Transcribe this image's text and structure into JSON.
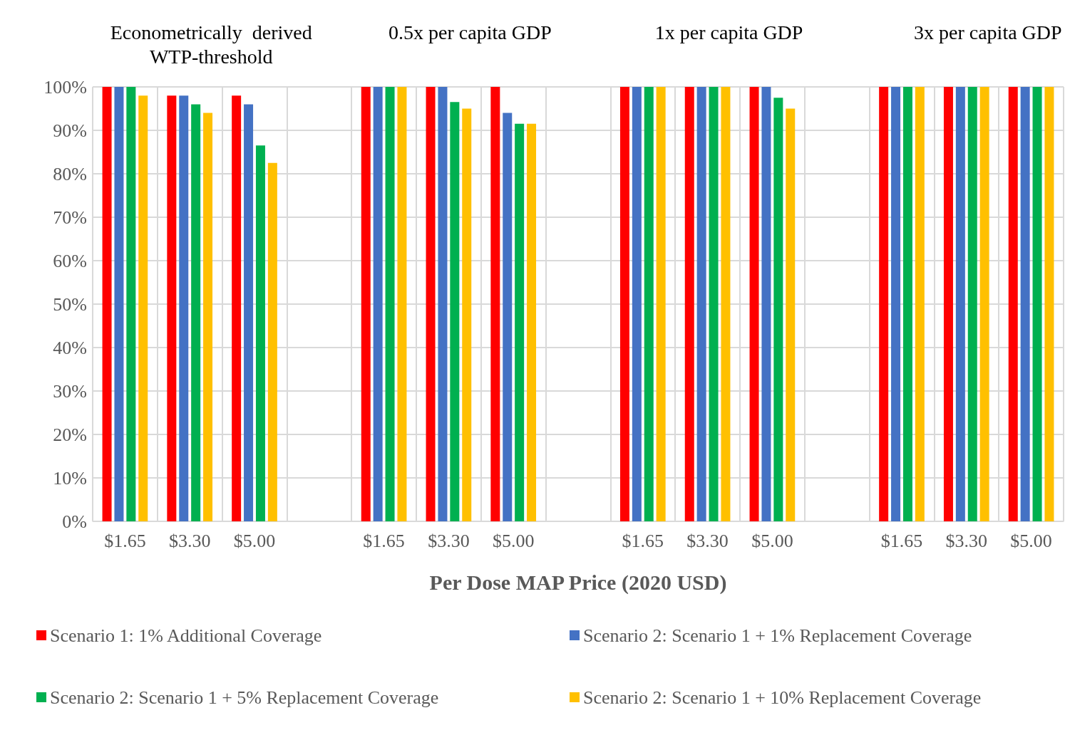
{
  "chart_data": {
    "type": "bar",
    "xlabel": "Per Dose MAP Price (2020 USD)",
    "annotations": [
      "Econometrically  derived\nWTP-threshold",
      "0.5x per capita GDP",
      "1x per capita GDP",
      "3x per capita GDP"
    ],
    "categories": [
      "$1.65",
      "$3.30",
      "$5.00",
      null,
      "$1.65",
      "$3.30",
      "$5.00",
      null,
      "$1.65",
      "$3.30",
      "$5.00",
      null,
      "$1.65",
      "$3.30",
      "$5.00"
    ],
    "series": [
      {
        "name": "Scenario 1: 1% Additional Coverage",
        "color": "#ff0000",
        "values": [
          100,
          98,
          98,
          null,
          100,
          100,
          100,
          null,
          100,
          100,
          100,
          null,
          100,
          100,
          100
        ]
      },
      {
        "name": "Scenario 2: Scenario 1 + 1% Replacement Coverage",
        "color": "#4472c4",
        "values": [
          100,
          98,
          96,
          null,
          100,
          100,
          94,
          null,
          100,
          100,
          100,
          null,
          100,
          100,
          100
        ]
      },
      {
        "name": "Scenario 2: Scenario 1 + 5% Replacement Coverage",
        "color": "#00b050",
        "values": [
          100,
          96,
          86.5,
          null,
          100,
          96.5,
          91.5,
          null,
          100,
          100,
          97.5,
          null,
          100,
          100,
          100
        ]
      },
      {
        "name": "Scenario 2: Scenario 1 + 10% Replacement Coverage",
        "color": "#ffc000",
        "values": [
          98,
          94,
          82.5,
          null,
          100,
          95,
          91.5,
          null,
          100,
          100,
          95,
          null,
          100,
          100,
          100
        ]
      }
    ],
    "ylim": [
      0,
      100
    ],
    "yticks": [
      {
        "value": 0,
        "label": "0%"
      },
      {
        "value": 10,
        "label": "10%"
      },
      {
        "value": 20,
        "label": "20%"
      },
      {
        "value": 30,
        "label": "30%"
      },
      {
        "value": 40,
        "label": "40%"
      },
      {
        "value": 50,
        "label": "50%"
      },
      {
        "value": 60,
        "label": "60%"
      },
      {
        "value": 70,
        "label": "70%"
      },
      {
        "value": 80,
        "label": "80%"
      },
      {
        "value": 90,
        "label": "90%"
      },
      {
        "value": 100,
        "label": "100%"
      }
    ],
    "grid": true,
    "legend": "bottom"
  }
}
